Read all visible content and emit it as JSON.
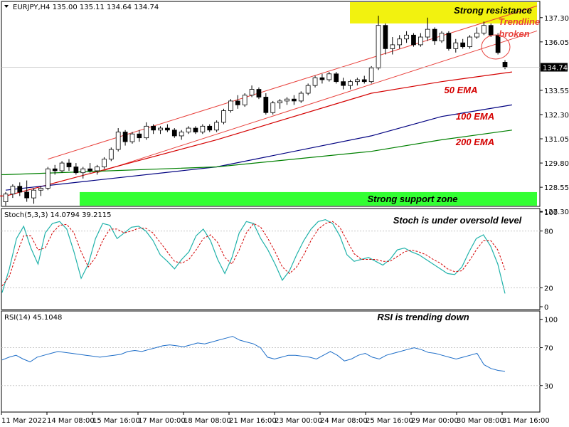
{
  "chart_data": [
    {
      "type": "candlestick",
      "header": {
        "symbol": "EURJPY,H4",
        "open": "135.00",
        "high": "135.11",
        "low": "134.64",
        "close": "134.74"
      },
      "ylim": [
        127.6,
        138.1
      ],
      "y_ticks": [
        "137.30",
        "136.05",
        "134.74",
        "133.55",
        "132.30",
        "131.05",
        "129.80",
        "128.55",
        "127.30"
      ],
      "current_price": "134.74",
      "candles": [
        [
          127.8,
          128.3,
          127.6,
          128.2
        ],
        [
          128.2,
          128.7,
          128.0,
          128.6
        ],
        [
          128.6,
          128.8,
          128.1,
          128.3
        ],
        [
          128.3,
          128.9,
          127.8,
          128.0
        ],
        [
          128.0,
          128.5,
          127.7,
          128.4
        ],
        [
          128.4,
          128.6,
          128.1,
          128.5
        ],
        [
          128.5,
          129.6,
          128.4,
          129.5
        ],
        [
          129.5,
          129.7,
          129.2,
          129.4
        ],
        [
          129.4,
          129.9,
          129.3,
          129.8
        ],
        [
          129.8,
          130.0,
          129.4,
          129.6
        ],
        [
          129.6,
          129.8,
          129.2,
          129.3
        ],
        [
          129.3,
          129.6,
          129.0,
          129.5
        ],
        [
          129.5,
          129.8,
          129.3,
          129.4
        ],
        [
          129.4,
          129.7,
          129.2,
          129.6
        ],
        [
          129.6,
          130.1,
          129.5,
          130.0
        ],
        [
          130.0,
          130.6,
          129.9,
          130.5
        ],
        [
          130.5,
          131.6,
          130.4,
          131.4
        ],
        [
          131.4,
          131.5,
          130.7,
          130.9
        ],
        [
          130.9,
          131.4,
          130.8,
          131.3
        ],
        [
          131.3,
          131.5,
          130.9,
          131.1
        ],
        [
          131.1,
          131.9,
          131.0,
          131.7
        ],
        [
          131.7,
          131.8,
          131.3,
          131.5
        ],
        [
          131.5,
          131.7,
          131.3,
          131.6
        ],
        [
          131.6,
          131.8,
          131.4,
          131.5
        ],
        [
          131.5,
          131.6,
          131.1,
          131.2
        ],
        [
          131.2,
          131.5,
          131.0,
          131.4
        ],
        [
          131.4,
          131.7,
          131.3,
          131.6
        ],
        [
          131.6,
          131.7,
          131.3,
          131.4
        ],
        [
          131.4,
          131.8,
          131.3,
          131.7
        ],
        [
          131.7,
          131.8,
          131.4,
          131.5
        ],
        [
          131.5,
          132.0,
          131.4,
          131.9
        ],
        [
          131.9,
          132.6,
          131.8,
          132.5
        ],
        [
          132.5,
          133.1,
          132.4,
          133.0
        ],
        [
          133.0,
          133.3,
          132.6,
          132.8
        ],
        [
          132.8,
          133.4,
          132.7,
          133.3
        ],
        [
          133.3,
          133.8,
          133.2,
          133.6
        ],
        [
          133.6,
          133.7,
          133.1,
          133.2
        ],
        [
          133.2,
          133.4,
          132.3,
          132.4
        ],
        [
          132.4,
          133.0,
          132.3,
          132.9
        ],
        [
          132.9,
          133.1,
          132.6,
          133.0
        ],
        [
          133.0,
          133.2,
          132.8,
          133.1
        ],
        [
          133.1,
          133.3,
          132.8,
          133.0
        ],
        [
          133.0,
          133.5,
          132.9,
          133.4
        ],
        [
          133.4,
          133.9,
          133.3,
          133.8
        ],
        [
          133.8,
          134.3,
          133.7,
          134.2
        ],
        [
          134.2,
          134.4,
          133.9,
          134.1
        ],
        [
          134.1,
          134.5,
          134.0,
          134.4
        ],
        [
          134.4,
          134.5,
          133.9,
          134.0
        ],
        [
          134.0,
          134.2,
          133.6,
          133.8
        ],
        [
          133.8,
          134.1,
          133.6,
          134.0
        ],
        [
          134.0,
          134.2,
          133.8,
          134.1
        ],
        [
          134.1,
          134.3,
          133.9,
          134.0
        ],
        [
          134.0,
          134.8,
          133.9,
          134.7
        ],
        [
          134.7,
          137.4,
          134.6,
          136.9
        ],
        [
          136.9,
          137.0,
          135.4,
          135.7
        ],
        [
          135.7,
          136.3,
          135.4,
          135.9
        ],
        [
          135.9,
          136.4,
          135.7,
          136.2
        ],
        [
          136.2,
          136.6,
          136.0,
          136.4
        ],
        [
          136.4,
          136.5,
          135.8,
          135.9
        ],
        [
          135.9,
          136.5,
          135.8,
          136.3
        ],
        [
          136.3,
          137.3,
          136.1,
          136.7
        ],
        [
          136.7,
          136.8,
          135.9,
          136.1
        ],
        [
          136.1,
          136.6,
          136.0,
          136.5
        ],
        [
          136.5,
          136.6,
          135.6,
          135.7
        ],
        [
          135.7,
          136.2,
          135.5,
          136.0
        ],
        [
          136.0,
          136.2,
          135.7,
          135.8
        ],
        [
          135.8,
          136.4,
          135.7,
          136.3
        ],
        [
          136.3,
          136.8,
          136.2,
          136.5
        ],
        [
          136.5,
          137.1,
          136.4,
          136.9
        ],
        [
          136.9,
          137.0,
          136.3,
          136.4
        ],
        [
          136.4,
          136.5,
          135.4,
          135.5
        ],
        [
          135.0,
          135.11,
          134.64,
          134.74
        ]
      ],
      "ema50": [
        [
          0,
          128.1
        ],
        [
          30,
          131.0
        ],
        [
          52,
          133.4
        ],
        [
          62,
          134.0
        ],
        [
          72,
          134.5
        ]
      ],
      "ema100": [
        [
          0,
          128.4
        ],
        [
          30,
          129.6
        ],
        [
          52,
          131.2
        ],
        [
          62,
          132.2
        ],
        [
          72,
          132.8
        ]
      ],
      "ema200": [
        [
          0,
          129.2
        ],
        [
          30,
          129.6
        ],
        [
          52,
          130.4
        ],
        [
          62,
          131.0
        ],
        [
          72,
          131.5
        ]
      ],
      "channel_upper": [
        [
          6,
          130.0
        ],
        [
          72,
          137.5
        ]
      ],
      "channel_lower": [
        [
          13,
          129.3
        ],
        [
          72,
          136.2
        ]
      ],
      "resistance_zone": [
        137.0,
        138.1
      ],
      "support_zone": [
        127.6,
        128.3
      ],
      "annotations": {
        "resistance": "Strong resistance",
        "trendline": "Trendline\nbroken",
        "ema50": "50 EMA",
        "ema100": "100 EMA",
        "ema200": "200 EMA",
        "support": "Strong support zone"
      },
      "colors": {
        "ema50": "#d40000",
        "ema100": "#000080",
        "ema200": "#008000",
        "channel": "#e8413c",
        "resistance": "#f2f20f",
        "support": "#33ff33"
      }
    },
    {
      "type": "line",
      "header": "Stoch(5,3,3) 14.0794 39.2115",
      "ylim": [
        0,
        100
      ],
      "y_ticks": [
        "100",
        "80",
        "20",
        "0"
      ],
      "main": [
        15,
        40,
        72,
        85,
        62,
        45,
        78,
        88,
        90,
        82,
        58,
        30,
        45,
        72,
        88,
        86,
        72,
        78,
        84,
        85,
        80,
        70,
        55,
        48,
        40,
        50,
        58,
        75,
        82,
        70,
        50,
        35,
        52,
        78,
        90,
        88,
        72,
        60,
        45,
        28,
        38,
        55,
        70,
        82,
        90,
        92,
        88,
        75,
        55,
        48,
        50,
        52,
        48,
        44,
        50,
        60,
        62,
        58,
        55,
        50,
        45,
        40,
        35,
        34,
        42,
        58,
        72,
        76,
        64,
        45,
        14
      ],
      "signal": [
        22,
        32,
        55,
        75,
        75,
        60,
        62,
        78,
        86,
        87,
        78,
        58,
        42,
        52,
        70,
        82,
        82,
        78,
        80,
        83,
        83,
        78,
        68,
        58,
        48,
        46,
        50,
        60,
        72,
        76,
        68,
        52,
        45,
        60,
        78,
        88,
        84,
        72,
        58,
        42,
        35,
        42,
        55,
        70,
        82,
        88,
        90,
        84,
        70,
        56,
        50,
        50,
        50,
        48,
        48,
        53,
        58,
        60,
        58,
        55,
        50,
        46,
        40,
        37,
        38,
        48,
        60,
        70,
        70,
        60,
        39
      ]
    },
    {
      "type": "line",
      "header": "RSI(14) 45.1048",
      "ylim": [
        5,
        105
      ],
      "y_ticks": [
        "100",
        "70",
        "30"
      ],
      "values": [
        57,
        60,
        62,
        58,
        55,
        60,
        62,
        64,
        66,
        65,
        64,
        63,
        62,
        61,
        60,
        61,
        62,
        63,
        66,
        67,
        66,
        68,
        70,
        72,
        73,
        72,
        71,
        73,
        75,
        74,
        76,
        78,
        80,
        82,
        78,
        76,
        74,
        70,
        60,
        58,
        60,
        62,
        62,
        61,
        60,
        58,
        62,
        66,
        62,
        56,
        58,
        62,
        64,
        60,
        58,
        62,
        64,
        66,
        68,
        70,
        68,
        65,
        64,
        62,
        60,
        58,
        60,
        62,
        64,
        52,
        48,
        46,
        45
      ],
      "color": "#1e6ec8"
    }
  ],
  "x_labels": [
    "11 Mar 2022",
    "14 Mar 08:00",
    "15 Mar 16:00",
    "17 Mar 00:00",
    "18 Mar 08:00",
    "21 Mar 16:00",
    "23 Mar 00:00",
    "24 Mar 08:00",
    "25 Mar 16:00",
    "29 Mar 00:00",
    "30 Mar 08:00",
    "31 Mar 16:00"
  ],
  "panel_texts": {
    "stoch_note": "Stoch is under oversold level",
    "rsi_note": "RSI is trending down"
  }
}
